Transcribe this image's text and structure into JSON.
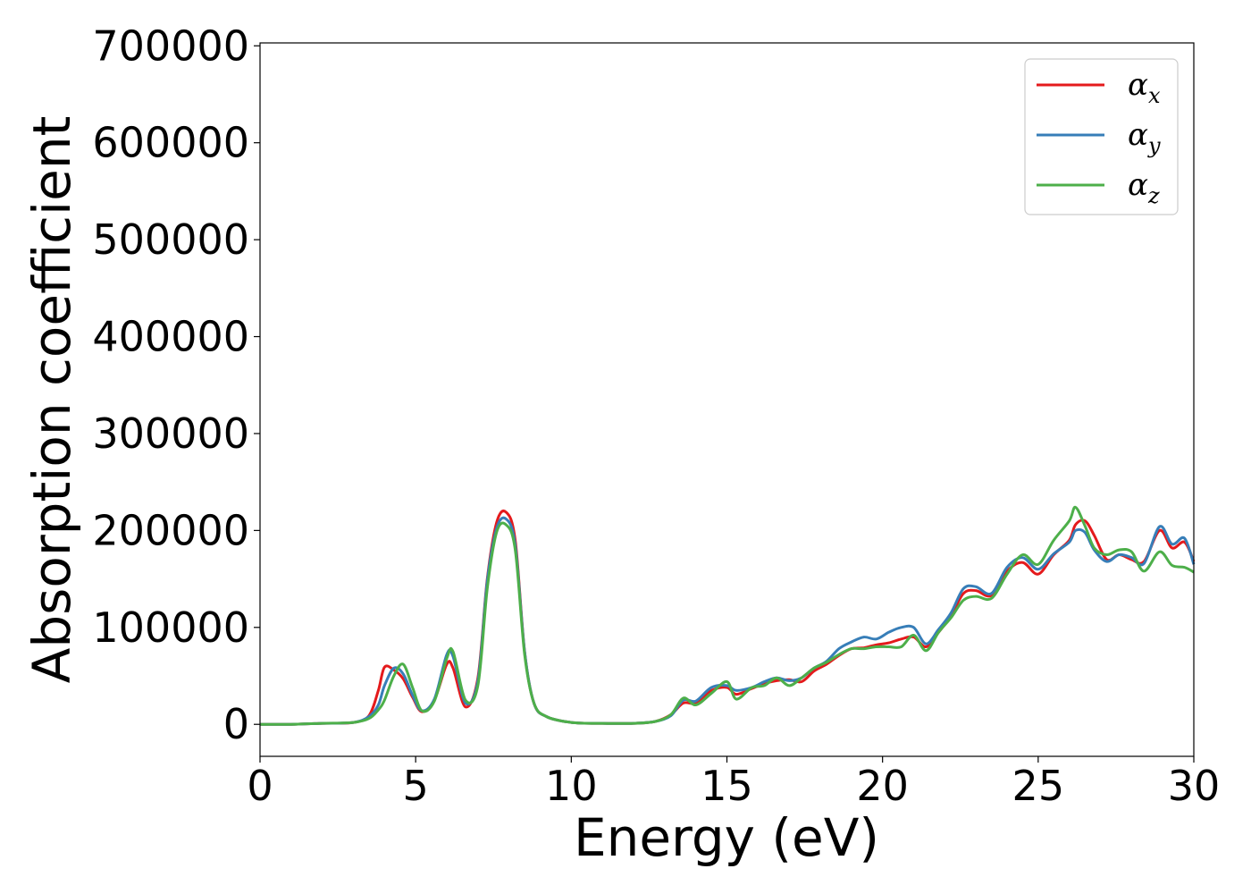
{
  "chart_data": {
    "type": "line",
    "title": "",
    "xlabel": "Energy (eV)",
    "ylabel": "Absorption coefficient",
    "xlim": [
      0,
      30
    ],
    "ylim": [
      -33000,
      703000
    ],
    "xticks": [
      0,
      5,
      10,
      15,
      20,
      25,
      30
    ],
    "yticks": [
      0,
      100000,
      200000,
      300000,
      400000,
      500000,
      600000,
      700000
    ],
    "grid": false,
    "legend_position": "top-right",
    "series": [
      {
        "name": "α_x",
        "legend_symbol": "α",
        "legend_subscript": "x",
        "color": "#e41a1c",
        "x": [
          0,
          1,
          2,
          3,
          3.5,
          3.8,
          4.0,
          4.3,
          4.6,
          4.9,
          5.2,
          5.6,
          6.0,
          6.2,
          6.6,
          7.0,
          7.3,
          7.6,
          7.9,
          8.2,
          8.5,
          8.8,
          9.2,
          10,
          11,
          12,
          12.7,
          13.2,
          13.6,
          14.0,
          14.5,
          15.0,
          15.3,
          15.8,
          16.2,
          16.6,
          17.0,
          17.4,
          17.8,
          18.2,
          18.6,
          19.0,
          19.4,
          19.8,
          20.2,
          20.6,
          21.0,
          21.4,
          21.8,
          22.2,
          22.6,
          23.0,
          23.5,
          24.0,
          24.5,
          25.0,
          25.5,
          26.0,
          26.2,
          26.5,
          26.8,
          27.2,
          27.6,
          28.0,
          28.4,
          28.9,
          29.3,
          29.7,
          30
        ],
        "values": [
          0,
          0,
          1000,
          2000,
          9000,
          35000,
          59000,
          56000,
          47000,
          28000,
          13000,
          25000,
          62000,
          58000,
          18000,
          48000,
          150000,
          208000,
          219000,
          190000,
          75000,
          22000,
          8000,
          2000,
          1000,
          1000,
          3000,
          10000,
          22000,
          22000,
          35000,
          38000,
          31000,
          37000,
          42000,
          45000,
          46000,
          44000,
          55000,
          62000,
          71000,
          78000,
          79000,
          82000,
          84000,
          88000,
          90000,
          80000,
          95000,
          112000,
          135000,
          138000,
          133000,
          158000,
          167000,
          155000,
          175000,
          190000,
          206000,
          210000,
          195000,
          170000,
          175000,
          170000,
          168000,
          200000,
          182000,
          188000,
          168000
        ]
      },
      {
        "name": "α_y",
        "legend_symbol": "α",
        "legend_subscript": "y",
        "color": "#377eb8",
        "x": [
          0,
          1,
          2,
          3,
          3.5,
          3.8,
          4.0,
          4.3,
          4.6,
          4.9,
          5.2,
          5.6,
          6.0,
          6.2,
          6.6,
          7.0,
          7.3,
          7.6,
          7.9,
          8.2,
          8.5,
          8.8,
          9.2,
          10,
          11,
          12,
          12.7,
          13.2,
          13.6,
          14.0,
          14.5,
          15.0,
          15.3,
          15.8,
          16.2,
          16.6,
          17.0,
          17.4,
          17.8,
          18.2,
          18.6,
          19.0,
          19.4,
          19.8,
          20.2,
          20.6,
          21.0,
          21.4,
          21.8,
          22.2,
          22.6,
          23.0,
          23.5,
          24.0,
          24.5,
          25.0,
          25.5,
          26.0,
          26.2,
          26.5,
          26.8,
          27.2,
          27.6,
          28.0,
          28.4,
          28.9,
          29.3,
          29.7,
          30
        ],
        "values": [
          0,
          0,
          1000,
          2000,
          8000,
          20000,
          40000,
          58000,
          52000,
          30000,
          14000,
          26000,
          72000,
          70000,
          22000,
          45000,
          148000,
          202000,
          212000,
          185000,
          75000,
          22000,
          8000,
          2000,
          1000,
          1000,
          3000,
          9000,
          25000,
          24000,
          38000,
          40000,
          35000,
          38000,
          44000,
          48000,
          45000,
          48000,
          58000,
          65000,
          78000,
          85000,
          90000,
          88000,
          95000,
          100000,
          100000,
          83000,
          98000,
          115000,
          140000,
          142000,
          135000,
          162000,
          172000,
          160000,
          176000,
          188000,
          200000,
          198000,
          180000,
          168000,
          175000,
          172000,
          166000,
          204000,
          186000,
          192000,
          165000
        ]
      },
      {
        "name": "α_z",
        "legend_symbol": "α",
        "legend_subscript": "z",
        "color": "#4daf4a",
        "x": [
          0,
          1,
          2,
          3,
          3.5,
          3.8,
          4.0,
          4.3,
          4.6,
          4.9,
          5.2,
          5.6,
          6.0,
          6.2,
          6.6,
          7.0,
          7.3,
          7.6,
          7.9,
          8.2,
          8.5,
          8.8,
          9.2,
          10,
          11,
          12,
          12.7,
          13.2,
          13.6,
          14.0,
          14.5,
          15.0,
          15.3,
          15.8,
          16.2,
          16.6,
          17.0,
          17.4,
          17.8,
          18.2,
          18.6,
          19.0,
          19.4,
          19.8,
          20.2,
          20.6,
          21.0,
          21.4,
          21.8,
          22.2,
          22.6,
          23.0,
          23.5,
          24.0,
          24.5,
          25.0,
          25.5,
          26.0,
          26.2,
          26.5,
          26.8,
          27.2,
          27.6,
          28.0,
          28.4,
          28.9,
          29.3,
          29.7,
          30
        ],
        "values": [
          0,
          0,
          1000,
          2000,
          6000,
          15000,
          25000,
          50000,
          62000,
          38000,
          14000,
          24000,
          68000,
          75000,
          25000,
          40000,
          140000,
          198000,
          206000,
          180000,
          72000,
          22000,
          8000,
          2000,
          1000,
          1000,
          3000,
          10000,
          27000,
          20000,
          32000,
          44000,
          26000,
          38000,
          40000,
          48000,
          40000,
          48000,
          58000,
          64000,
          72000,
          78000,
          78000,
          80000,
          80000,
          80000,
          92000,
          76000,
          95000,
          110000,
          128000,
          132000,
          130000,
          155000,
          175000,
          165000,
          190000,
          210000,
          224000,
          205000,
          182000,
          175000,
          180000,
          178000,
          158000,
          178000,
          164000,
          162000,
          157000
        ]
      }
    ]
  }
}
